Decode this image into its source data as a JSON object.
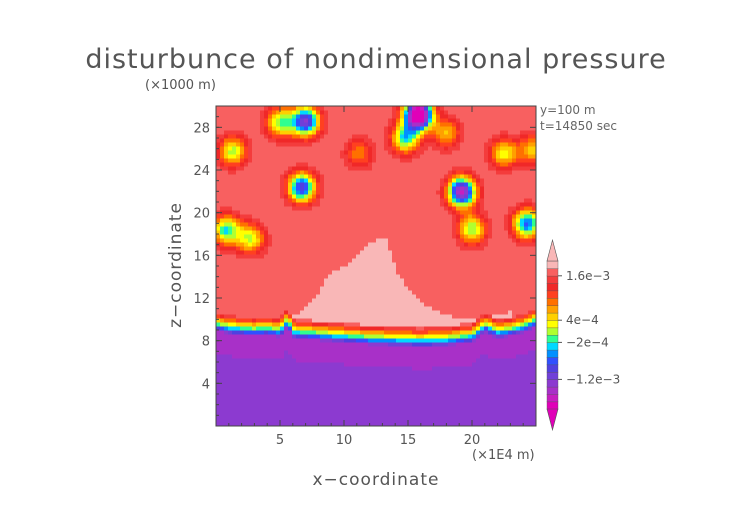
{
  "chart_data": {
    "type": "heatmap",
    "title": "disturbunce of nondimensional pressure",
    "xlabel": "x−coordinate",
    "ylabel": "z−coordinate",
    "x_unit": "(×1E4 m)",
    "y_unit": "(×1000 m)",
    "xlim": [
      0,
      25
    ],
    "ylim": [
      0,
      30
    ],
    "x_ticks": [
      "5",
      "10",
      "15",
      "20"
    ],
    "y_ticks": [
      "4",
      "8",
      "12",
      "16",
      "20",
      "24",
      "28"
    ],
    "annotations": [
      "y=100 m",
      "t=14850 sec"
    ],
    "colorbar_labels": [
      "1.6e−3",
      "4e−4",
      "−2e−4",
      "−1.2e−3"
    ],
    "levels": [
      -0.002,
      -0.0018,
      -0.0016,
      -0.0014,
      -0.0012,
      -0.001,
      -0.0008,
      -0.0006,
      -0.0004,
      -0.0002,
      0,
      0.0002,
      0.0004,
      0.0006,
      0.0008,
      0.001,
      0.0012,
      0.0014,
      0.0016,
      0.0018
    ],
    "colors": [
      "#e000b8",
      "#c61ec0",
      "#a830c8",
      "#8c3ad0",
      "#7040d8",
      "#5040e0",
      "#3050ff",
      "#0090ff",
      "#00d8ff",
      "#30ff90",
      "#b0ff30",
      "#ffff00",
      "#ffd000",
      "#ffa000",
      "#ff7000",
      "#ff4020",
      "#f02828",
      "#f43c3c",
      "#f86060",
      "#f9b7b7"
    ],
    "field": {
      "description": "layered: negative (magenta/purple) below ~8 km, strong gradient 8-10 km, near-uniform high (pink) above, with orange/red/blue cells in upper region",
      "below_boundary_value": -0.0016,
      "background_value": 0.0018,
      "boundary_z": [
        [
          0,
          8.9
        ],
        [
          1,
          8.6
        ],
        [
          2,
          8.5
        ],
        [
          3,
          8.4
        ],
        [
          4,
          8.5
        ],
        [
          5,
          8.3
        ],
        [
          5.6,
          9.3
        ],
        [
          6,
          8.2
        ],
        [
          8,
          8.0
        ],
        [
          10,
          7.8
        ],
        [
          12,
          7.6
        ],
        [
          14,
          7.5
        ],
        [
          16,
          7.4
        ],
        [
          18,
          7.5
        ],
        [
          20,
          7.8
        ],
        [
          21,
          8.8
        ],
        [
          22,
          8.2
        ],
        [
          23,
          8.4
        ],
        [
          24,
          8.7
        ],
        [
          25,
          9.3
        ]
      ],
      "features": [
        {
          "x": 0.8,
          "z": 18.4,
          "amp": -0.002
        },
        {
          "x": 2.7,
          "z": 17.6,
          "amp": -0.0016
        },
        {
          "x": 1.3,
          "z": 25.8,
          "amp": -0.0017
        },
        {
          "x": 5.0,
          "z": 28.5,
          "amp": -0.0018
        },
        {
          "x": 7.0,
          "z": 28.6,
          "amp": -0.003
        },
        {
          "x": 6.7,
          "z": 22.4,
          "amp": -0.0028
        },
        {
          "x": 11.2,
          "z": 25.6,
          "amp": -0.001
        },
        {
          "x": 15.8,
          "z": 29.2,
          "amp": -0.0045
        },
        {
          "x": 14.8,
          "z": 27.0,
          "amp": -0.002
        },
        {
          "x": 18.0,
          "z": 27.5,
          "amp": -0.0012
        },
        {
          "x": 19.2,
          "z": 22.0,
          "amp": -0.0035
        },
        {
          "x": 20.0,
          "z": 18.5,
          "amp": -0.0018
        },
        {
          "x": 22.5,
          "z": 25.6,
          "amp": -0.0015
        },
        {
          "x": 24.3,
          "z": 19.0,
          "amp": -0.0025
        },
        {
          "x": 24.8,
          "z": 26.0,
          "amp": -0.0013
        }
      ]
    }
  }
}
